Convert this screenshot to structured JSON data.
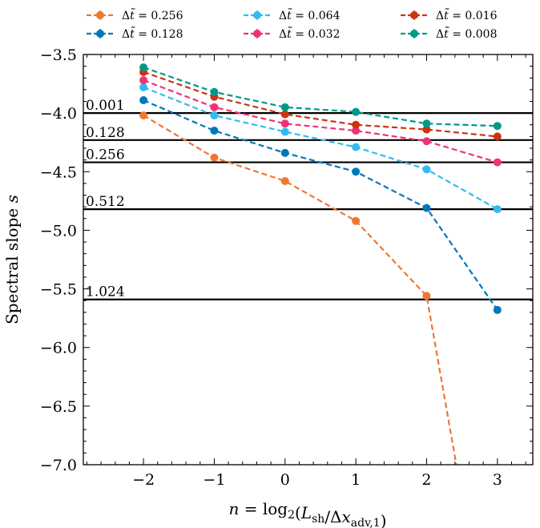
{
  "chart_data": {
    "type": "line",
    "title": "",
    "xlabel": "n = log₂(L_sh/Δx_adv,1)",
    "ylabel": "Spectral slope s",
    "xlim": [
      -2.85,
      3.5
    ],
    "ylim": [
      -7.0,
      -3.5
    ],
    "x_ticks": [
      -2,
      -1,
      0,
      1,
      2,
      3
    ],
    "x_tick_labels": [
      "−2",
      "−1",
      "0",
      "1",
      "2",
      "3"
    ],
    "y_ticks": [
      -3.5,
      -4.0,
      -4.5,
      -5.0,
      -5.5,
      -6.0,
      -6.5,
      -7.0
    ],
    "y_tick_labels": [
      "−3.5",
      "−4.0",
      "−4.5",
      "−5.0",
      "−5.5",
      "−6.0",
      "−6.5",
      "−7.0"
    ],
    "legend_position": "top, outside plot, three columns",
    "series": [
      {
        "name": "Δt̃ = 0.256",
        "color": "#EE7733",
        "x": [
          -2,
          -1,
          0,
          1,
          2,
          2.42
        ],
        "y": [
          -4.02,
          -4.38,
          -4.58,
          -4.92,
          -5.56,
          -7.0
        ],
        "markers": [
          true,
          true,
          true,
          true,
          true,
          false
        ]
      },
      {
        "name": "Δt̃ = 0.128",
        "color": "#0077BB",
        "x": [
          -2,
          -1,
          0,
          1,
          2,
          3
        ],
        "y": [
          -3.89,
          -4.15,
          -4.34,
          -4.5,
          -4.81,
          -5.68
        ],
        "markers": [
          true,
          true,
          true,
          true,
          true,
          true
        ]
      },
      {
        "name": "Δt̃ = 0.064",
        "color": "#33BBEE",
        "x": [
          -2,
          -1,
          0,
          1,
          2,
          3
        ],
        "y": [
          -3.78,
          -4.02,
          -4.16,
          -4.29,
          -4.48,
          -4.82
        ],
        "markers": [
          true,
          true,
          true,
          true,
          true,
          true
        ]
      },
      {
        "name": "Δt̃ = 0.032",
        "color": "#EE3377",
        "x": [
          -2,
          -1,
          0,
          1,
          2,
          3
        ],
        "y": [
          -3.72,
          -3.95,
          -4.09,
          -4.15,
          -4.24,
          -4.42
        ],
        "markers": [
          true,
          true,
          true,
          true,
          true,
          true
        ]
      },
      {
        "name": "Δt̃ = 0.016",
        "color": "#CC3311",
        "x": [
          -2,
          -1,
          0,
          1,
          2,
          3
        ],
        "y": [
          -3.65,
          -3.86,
          -4.01,
          -4.1,
          -4.14,
          -4.2
        ],
        "markers": [
          true,
          true,
          true,
          true,
          true,
          true
        ]
      },
      {
        "name": "Δt̃ = 0.008",
        "color": "#009988",
        "x": [
          -2,
          -1,
          0,
          1,
          2,
          3
        ],
        "y": [
          -3.61,
          -3.82,
          -3.95,
          -3.99,
          -4.09,
          -4.11
        ],
        "markers": [
          true,
          true,
          true,
          true,
          true,
          true
        ]
      }
    ],
    "reference_lines": [
      {
        "label": "0.001",
        "y": -4.0
      },
      {
        "label": "0.128",
        "y": -4.23
      },
      {
        "label": "0.256",
        "y": -4.42
      },
      {
        "label": "0.512",
        "y": -4.82
      },
      {
        "label": "1.024",
        "y": -5.59
      }
    ]
  }
}
